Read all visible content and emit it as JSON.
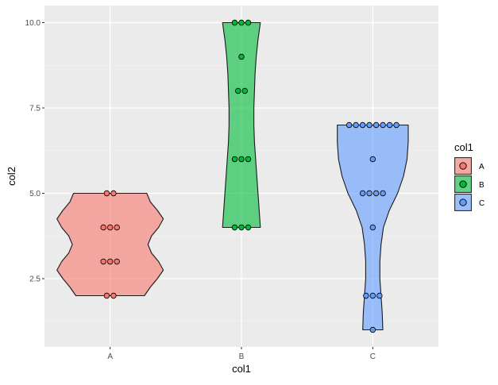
{
  "chart_data": {
    "type": "violin",
    "xlabel": "col1",
    "ylabel": "col2",
    "categories": [
      "A",
      "B",
      "C"
    ],
    "ylim": [
      0.5,
      10.5
    ],
    "y_ticks": [
      2.5,
      5.0,
      7.5,
      10.0
    ],
    "y_tick_labels": [
      "2.5",
      "5.0",
      "7.5",
      "10.0"
    ],
    "grid": true,
    "panel_background": "#EBEBEB",
    "legend": {
      "title": "col1",
      "position": "right",
      "entries": [
        "A",
        "B",
        "C"
      ]
    },
    "series": [
      {
        "name": "A",
        "color": "#F8766D",
        "points": [
          {
            "y": 5.0,
            "count": 2
          },
          {
            "y": 4.0,
            "count": 3
          },
          {
            "y": 3.0,
            "count": 3
          },
          {
            "y": 2.0,
            "count": 2
          }
        ],
        "violin_profile": [
          [
            2.0,
            0.58
          ],
          [
            2.25,
            0.68
          ],
          [
            2.5,
            0.8
          ],
          [
            2.75,
            0.9
          ],
          [
            3.0,
            0.82
          ],
          [
            3.25,
            0.7
          ],
          [
            3.5,
            0.64
          ],
          [
            3.75,
            0.7
          ],
          [
            4.0,
            0.82
          ],
          [
            4.25,
            0.9
          ],
          [
            4.5,
            0.8
          ],
          [
            4.75,
            0.68
          ],
          [
            5.0,
            0.62
          ]
        ]
      },
      {
        "name": "B",
        "color": "#00BA38",
        "points": [
          {
            "y": 10.0,
            "count": 3
          },
          {
            "y": 9.0,
            "count": 1
          },
          {
            "y": 8.0,
            "count": 2
          },
          {
            "y": 6.0,
            "count": 3
          },
          {
            "y": 4.0,
            "count": 3
          }
        ],
        "violin_profile": [
          [
            4.0,
            0.32
          ],
          [
            4.5,
            0.3
          ],
          [
            5.0,
            0.28
          ],
          [
            5.5,
            0.26
          ],
          [
            6.0,
            0.24
          ],
          [
            6.5,
            0.22
          ],
          [
            7.0,
            0.21
          ],
          [
            7.5,
            0.21
          ],
          [
            8.0,
            0.22
          ],
          [
            8.5,
            0.23
          ],
          [
            9.0,
            0.25
          ],
          [
            9.5,
            0.28
          ],
          [
            10.0,
            0.32
          ]
        ]
      },
      {
        "name": "C",
        "color": "#619CFF",
        "points": [
          {
            "y": 7.0,
            "count": 8
          },
          {
            "y": 6.0,
            "count": 1
          },
          {
            "y": 5.0,
            "count": 4
          },
          {
            "y": 4.0,
            "count": 1
          },
          {
            "y": 2.0,
            "count": 3
          },
          {
            "y": 1.0,
            "count": 1
          }
        ],
        "violin_profile": [
          [
            1.0,
            0.17
          ],
          [
            1.5,
            0.16
          ],
          [
            2.0,
            0.14
          ],
          [
            2.5,
            0.12
          ],
          [
            3.0,
            0.12
          ],
          [
            3.5,
            0.14
          ],
          [
            4.0,
            0.18
          ],
          [
            4.5,
            0.28
          ],
          [
            5.0,
            0.42
          ],
          [
            5.5,
            0.52
          ],
          [
            6.0,
            0.58
          ],
          [
            6.5,
            0.6
          ],
          [
            7.0,
            0.6
          ]
        ]
      }
    ]
  }
}
